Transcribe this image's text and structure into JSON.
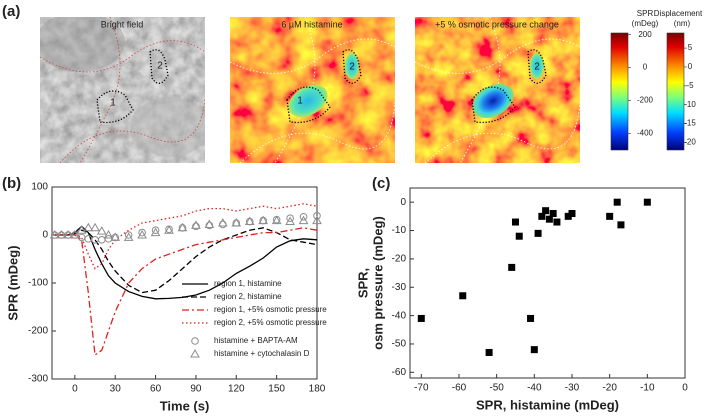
{
  "panel_labels": [
    "(a)",
    "(b)",
    "(c)"
  ],
  "images": [
    {
      "title": "Bright field"
    },
    {
      "title": "6 µM histamine"
    },
    {
      "title": "+5 % osmotic pressure change"
    }
  ],
  "region_labels": [
    "1",
    "2"
  ],
  "colorbars": [
    {
      "title": "SPR",
      "unit": "(mDeg)",
      "lim": [
        210,
        -500
      ],
      "ticks": [
        200,
        0,
        -200,
        -400
      ]
    },
    {
      "title": "Displacement",
      "unit": "(nm)",
      "lim": [
        9,
        -22
      ],
      "ticks": [
        5,
        0,
        -5,
        -10,
        -15,
        -20
      ]
    }
  ],
  "chart_data": [
    {
      "type": "line",
      "xlabel": "Time (s)",
      "ylabel": "SPR (mDeg)",
      "xlim": [
        -17,
        180
      ],
      "xticks": [
        0,
        30,
        60,
        90,
        120,
        150,
        180
      ],
      "ylim": [
        -300,
        100
      ],
      "yticks": [
        -300,
        -200,
        -100,
        0,
        100
      ],
      "legend": "lower right",
      "x": [
        -15,
        -10,
        -5,
        0,
        5,
        10,
        15,
        20,
        25,
        30,
        40,
        50,
        60,
        70,
        80,
        90,
        100,
        110,
        120,
        130,
        140,
        150,
        160,
        170,
        180
      ],
      "series": [
        {
          "name": "region 1, histamine",
          "color": "#000000",
          "dash": "solid",
          "values": [
            0,
            0,
            0,
            5,
            18,
            5,
            -30,
            -60,
            -85,
            -100,
            -118,
            -128,
            -133,
            -132,
            -130,
            -125,
            -115,
            -100,
            -80,
            -65,
            -48,
            -25,
            -12,
            -8,
            -10
          ]
        },
        {
          "name": "region 2, histamine",
          "color": "#000000",
          "dash": "dashed",
          "values": [
            0,
            0,
            0,
            3,
            10,
            5,
            -10,
            -30,
            -55,
            -75,
            -105,
            -120,
            -115,
            -95,
            -70,
            -45,
            -25,
            -10,
            0,
            10,
            15,
            5,
            -10,
            -15,
            -20
          ]
        },
        {
          "name": "region 1, +5% osmotic pressure",
          "color": "#e0201b",
          "dash": "dashdot",
          "values": [
            0,
            0,
            0,
            0,
            -10,
            -120,
            -250,
            -240,
            -200,
            -160,
            -100,
            -70,
            -50,
            -40,
            -30,
            -20,
            -15,
            -10,
            -5,
            0,
            5,
            5,
            10,
            15,
            10
          ]
        },
        {
          "name": "region 2, +5% osmotic pressure",
          "color": "#e0201b",
          "dash": "dotted",
          "values": [
            0,
            0,
            0,
            0,
            -5,
            -40,
            -70,
            -60,
            -30,
            -10,
            10,
            25,
            30,
            35,
            40,
            50,
            55,
            55,
            50,
            55,
            60,
            55,
            60,
            65,
            60
          ]
        },
        {
          "name": "histamine + BAPTA-AM",
          "color": "#8c8c8c",
          "dash": "none",
          "marker": "circle",
          "values": [
            0,
            0,
            0,
            0,
            -5,
            -8,
            -10,
            -10,
            -8,
            -5,
            0,
            5,
            10,
            12,
            15,
            18,
            20,
            22,
            25,
            28,
            30,
            32,
            35,
            38,
            40
          ]
        },
        {
          "name": "histamine + cytochalasin D",
          "color": "#8c8c8c",
          "dash": "none",
          "marker": "triangle",
          "values": [
            0,
            0,
            0,
            0,
            10,
            15,
            15,
            8,
            0,
            -5,
            -5,
            0,
            5,
            10,
            15,
            20,
            22,
            25,
            25,
            28,
            30,
            30,
            28,
            30,
            30
          ]
        }
      ]
    },
    {
      "type": "scatter",
      "xlabel": "SPR, histamine (mDeg)",
      "ylabel": [
        "SPR,",
        "osm pressure (mDeg)"
      ],
      "xlim": [
        -73,
        0
      ],
      "xticks": [
        -70,
        -60,
        -50,
        -40,
        -30,
        -20,
        -10,
        0
      ],
      "ylim": [
        -62,
        5
      ],
      "yticks": [
        -60,
        -50,
        -40,
        -30,
        -20,
        -10,
        0
      ],
      "color": "#000000",
      "x": [
        -70,
        -59,
        -52,
        -46,
        -45,
        -44,
        -41,
        -40,
        -39,
        -38,
        -37,
        -36,
        -35,
        -34,
        -31,
        -30,
        -20,
        -18,
        -17,
        -10
      ],
      "values": [
        -41,
        -33,
        -53,
        -23,
        -7,
        -12,
        -41,
        -52,
        -11,
        -5,
        -3,
        -6,
        -4,
        -7,
        -5,
        -4,
        -5,
        0,
        -8,
        0
      ]
    }
  ]
}
